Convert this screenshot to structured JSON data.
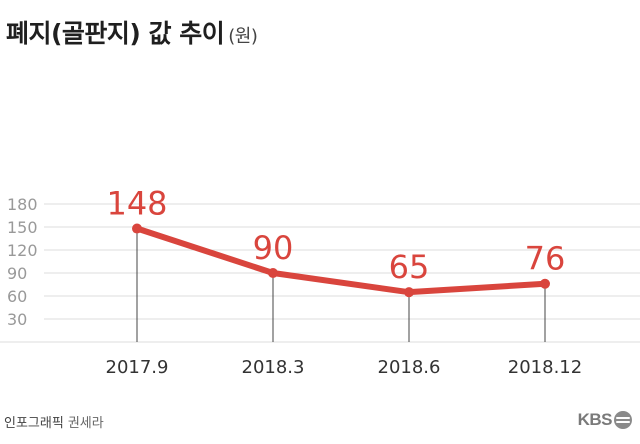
{
  "title": "폐지(골판지) 값 추이",
  "unit": "(원)",
  "footer": {
    "credit_label": "인포그래픽",
    "credit_name": "권세라"
  },
  "logo_text": "KBS",
  "colors": {
    "line": "#d9453d",
    "label": "#d9453d",
    "grid": "#dcdcdc",
    "axis_text": "#999999",
    "x_text": "#333333",
    "drop": "#444444"
  },
  "chart_data": {
    "type": "line",
    "title": "폐지(골판지) 값 추이",
    "ylabel": "(원)",
    "xlabel": "",
    "categories": [
      "2017.9",
      "2018.3",
      "2018.6",
      "2018.12"
    ],
    "values": [
      148,
      90,
      65,
      76
    ],
    "data_labels": [
      "148",
      "90",
      "65",
      "76"
    ],
    "yticks": [
      30,
      60,
      90,
      120,
      150,
      180
    ],
    "ylim": [
      0,
      180
    ],
    "grid": true,
    "legend": "none"
  }
}
